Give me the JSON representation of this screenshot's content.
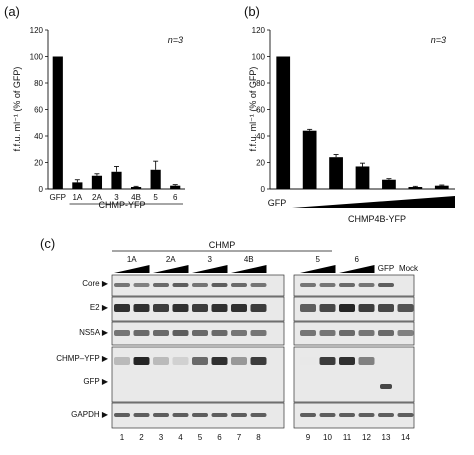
{
  "panel_labels": {
    "a": "(a)",
    "b": "(b)",
    "c": "(c)"
  },
  "chart_data": [
    {
      "type": "bar",
      "panel": "(a)",
      "annotation": "n=3",
      "ylabel": "f.f.u. ml⁻¹ (% of GFP)",
      "ylim": [
        0,
        120
      ],
      "yticks": [
        "0",
        "20",
        "40",
        "60",
        "80",
        "100",
        "120"
      ],
      "categories": [
        "GFP",
        "1A",
        "2A",
        "3",
        "4B",
        "5",
        "6"
      ],
      "group_label": "CHMP-YFP",
      "values": [
        100,
        5,
        10,
        13,
        1.5,
        14.5,
        2.5
      ],
      "errors": [
        0,
        2,
        1.5,
        4,
        0.5,
        6.5,
        0.8
      ],
      "bar_color": "#000000"
    },
    {
      "type": "bar",
      "panel": "(b)",
      "annotation": "n=3",
      "ylabel": "f.f.u. ml⁻¹ (% of GFP)",
      "ylim": [
        0,
        120
      ],
      "yticks": [
        "0",
        "20",
        "40",
        "60",
        "80",
        "100",
        "120"
      ],
      "categories": [
        "GFP",
        "",
        "",
        "",
        "",
        "",
        ""
      ],
      "first_label": "GFP",
      "group_label": "CHMP4B-YFP",
      "values": [
        100,
        44,
        24,
        17,
        7,
        1.5,
        2.5
      ],
      "errors": [
        0,
        1,
        2,
        2.5,
        0.8,
        0.5,
        0.5
      ],
      "bar_color": "#000000"
    }
  ],
  "blot": {
    "header": "CHMP",
    "group_labels": [
      "1A",
      "2A",
      "3",
      "4B",
      "5",
      "6"
    ],
    "extra_labels": [
      "GFP",
      "Mock"
    ],
    "rows": [
      "Core ▶",
      "E2 ▶",
      "NS5A ▶",
      "CHMP–YFP ▶",
      "GFP ▶",
      "GAPDH ▶"
    ],
    "lanes": [
      "1",
      "2",
      "3",
      "4",
      "5",
      "6",
      "7",
      "8",
      "9",
      "10",
      "11",
      "12",
      "13",
      "14"
    ],
    "lane_intensity": {
      "core": [
        0.6,
        0.55,
        0.65,
        0.7,
        0.6,
        0.7,
        0.65,
        0.6,
        0.6,
        0.6,
        0.65,
        0.6,
        0.7,
        0
      ],
      "e2": [
        0.9,
        0.9,
        0.85,
        0.9,
        0.85,
        0.9,
        0.9,
        0.85,
        0.7,
        0.8,
        0.95,
        0.85,
        0.8,
        0.75
      ],
      "ns5a": [
        0.6,
        0.65,
        0.65,
        0.7,
        0.65,
        0.65,
        0.6,
        0.6,
        0.6,
        0.6,
        0.65,
        0.6,
        0.65,
        0.55
      ],
      "chmp_yfp": [
        0.3,
        0.95,
        0.3,
        0.2,
        0.65,
        0.9,
        0.45,
        0.85,
        0.1,
        0.85,
        0.9,
        0.55,
        0,
        0
      ],
      "gfp": [
        0,
        0,
        0,
        0,
        0,
        0,
        0,
        0,
        0,
        0,
        0,
        0,
        0.8,
        0
      ],
      "gapdh": [
        0.7,
        0.7,
        0.7,
        0.7,
        0.7,
        0.7,
        0.7,
        0.7,
        0.7,
        0.7,
        0.7,
        0.7,
        0.7,
        0.7
      ]
    }
  }
}
